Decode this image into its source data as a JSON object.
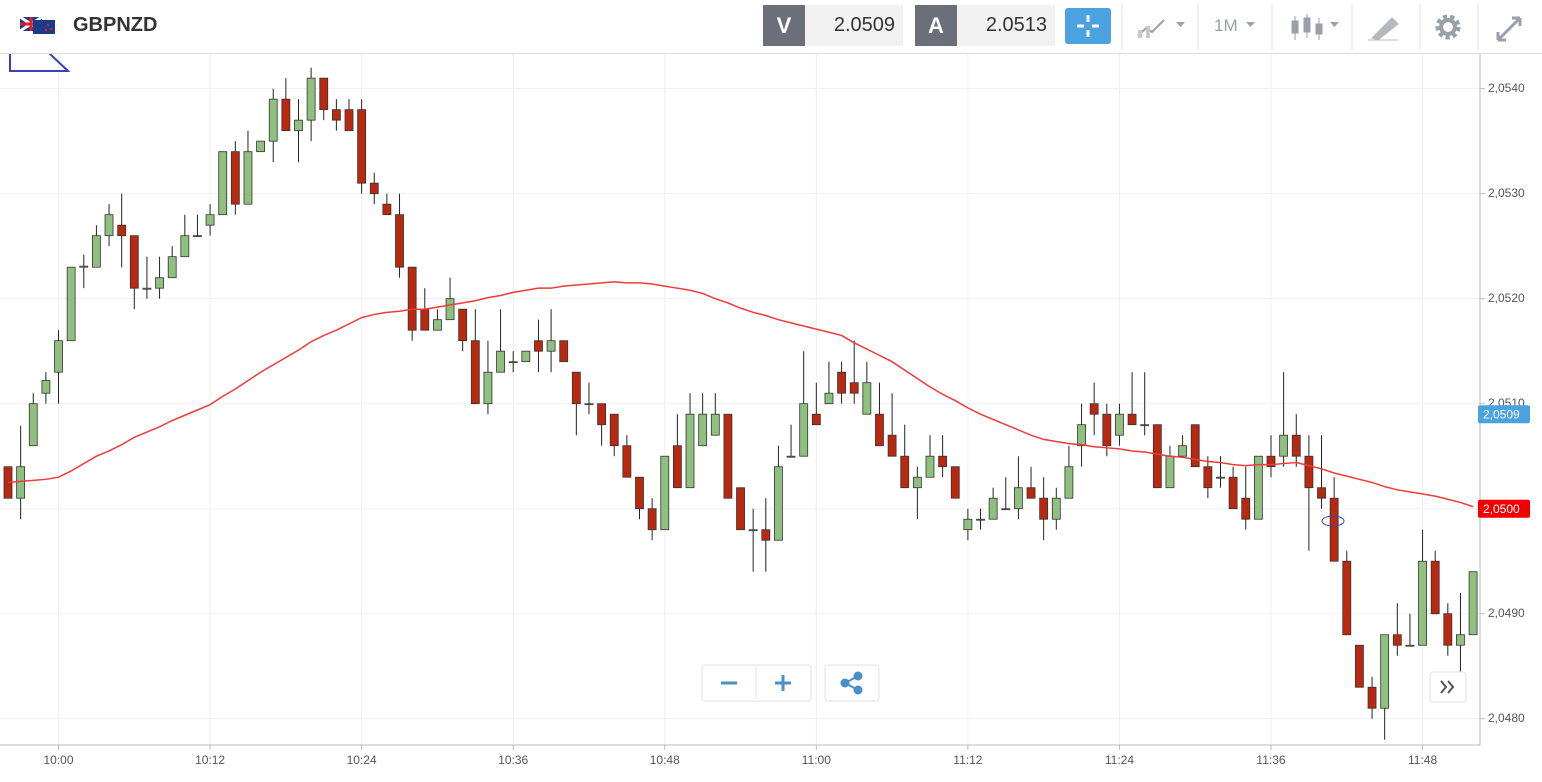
{
  "toolbar": {
    "symbol": "GBPNZD",
    "bid_label": "V",
    "bid": 2.0509,
    "ask_label": "A",
    "ask": 2.0513,
    "timeframe": "1M"
  },
  "chart_data": {
    "type": "candlestick",
    "x": [
      "9:56",
      "9:57",
      "9:58",
      "9:59",
      "10:00",
      "10:01",
      "10:02",
      "10:03",
      "10:04",
      "10:05",
      "10:06",
      "10:07",
      "10:08",
      "10:09",
      "10:10",
      "10:11",
      "10:12",
      "10:13",
      "10:14",
      "10:15",
      "10:16",
      "10:17",
      "10:18",
      "10:19",
      "10:20",
      "10:21",
      "10:22",
      "10:23",
      "10:24",
      "10:25",
      "10:26",
      "10:27",
      "10:28",
      "10:29",
      "10:30",
      "10:31",
      "10:32",
      "10:33",
      "10:34",
      "10:35",
      "10:36",
      "10:37",
      "10:38",
      "10:39",
      "10:40",
      "10:41",
      "10:42",
      "10:43",
      "10:44",
      "10:45",
      "10:46",
      "10:47",
      "10:48",
      "10:49",
      "10:50",
      "10:51",
      "10:52",
      "10:53",
      "10:54",
      "10:55",
      "10:56",
      "10:57",
      "10:58",
      "10:59",
      "11:00",
      "11:01",
      "11:02",
      "11:03",
      "11:04",
      "11:05",
      "11:06",
      "11:07",
      "11:08",
      "11:09",
      "11:10",
      "11:11",
      "11:12",
      "11:13",
      "11:14",
      "11:15",
      "11:16",
      "11:17",
      "11:18",
      "11:19",
      "11:20",
      "11:21",
      "11:22",
      "11:23",
      "11:24",
      "11:25",
      "11:26",
      "11:27",
      "11:28",
      "11:29",
      "11:30",
      "11:31",
      "11:32",
      "11:33",
      "11:34",
      "11:35",
      "11:36",
      "11:37",
      "11:38",
      "11:39",
      "11:40",
      "11:41",
      "11:42",
      "11:43",
      "11:44",
      "11:45",
      "11:46",
      "11:47",
      "11:48",
      "11:49",
      "11:50",
      "11:51",
      "11:52"
    ],
    "open": [
      2.0504,
      2.0501,
      2.0506,
      2.0511,
      2.0513,
      2.0516,
      2.0523,
      2.0523,
      2.0526,
      2.0527,
      2.0526,
      2.05209,
      2.0521,
      2.0522,
      2.0524,
      2.0526,
      2.0527,
      2.0528,
      2.0534,
      2.0529,
      2.0534,
      2.0535,
      2.0539,
      2.0536,
      2.0537,
      2.0541,
      2.0538,
      2.0538,
      2.0538,
      2.0531,
      2.0529,
      2.0528,
      2.0523,
      2.0519,
      2.0517,
      2.0518,
      2.0519,
      2.0516,
      2.051,
      2.0513,
      2.0514,
      2.0514,
      2.0516,
      2.0515,
      2.0516,
      2.0513,
      2.051,
      2.051,
      2.0509,
      2.0506,
      2.0503,
      2.05,
      2.0498,
      2.0506,
      2.0502,
      2.0506,
      2.0507,
      2.0509,
      2.0502,
      2.0498,
      2.0498,
      2.0497,
      2.0505,
      2.0505,
      2.0509,
      2.051,
      2.0513,
      2.0512,
      2.0509,
      2.0509,
      2.0507,
      2.0505,
      2.0502,
      2.0503,
      2.0505,
      2.0504,
      2.0498,
      2.0499,
      2.0499,
      2.05,
      2.05,
      2.0502,
      2.0501,
      2.0499,
      2.0501,
      2.0506,
      2.051,
      2.0509,
      2.0507,
      2.0509,
      2.0508,
      2.0508,
      2.0502,
      2.0505,
      2.0508,
      2.0504,
      2.0503,
      2.0503,
      2.0501,
      2.0499,
      2.0505,
      2.0505,
      2.0507,
      2.0505,
      2.0502,
      2.0501,
      2.0495,
      2.0487,
      2.0483,
      2.0481,
      2.0488,
      2.0487,
      2.0487,
      2.0495,
      2.049,
      2.0487,
      2.0488
    ],
    "high": [
      2.0504,
      2.05079,
      2.0511,
      2.0513,
      2.0517,
      2.0523,
      2.05242,
      2.0527,
      2.0529,
      2.053,
      2.0526,
      2.0524,
      2.0524,
      2.0525,
      2.0528,
      2.0528,
      2.0529,
      2.0534,
      2.0535,
      2.0536,
      2.0535,
      2.054,
      2.0541,
      2.0539,
      2.0542,
      2.0541,
      2.0539,
      2.0539,
      2.0539,
      2.0532,
      2.053,
      2.053,
      2.0523,
      2.0521,
      2.0519,
      2.0522,
      2.0519,
      2.0519,
      2.0516,
      2.0519,
      2.0515,
      2.0515,
      2.0518,
      2.0519,
      2.0516,
      2.0513,
      2.0512,
      2.051,
      2.0509,
      2.0507,
      2.0503,
      2.0501,
      2.0505,
      2.0509,
      2.0511,
      2.0511,
      2.0511,
      2.0509,
      2.0502,
      2.05,
      2.0501,
      2.0506,
      2.0508,
      2.0515,
      2.0512,
      2.0514,
      2.0514,
      2.0516,
      2.0514,
      2.0512,
      2.0511,
      2.0508,
      2.0504,
      2.0507,
      2.0507,
      2.0504,
      2.05,
      2.05,
      2.0502,
      2.0503,
      2.0505,
      2.0504,
      2.0503,
      2.0502,
      2.0506,
      2.051,
      2.0512,
      2.051,
      2.051,
      2.0513,
      2.0513,
      2.0508,
      2.0506,
      2.0507,
      2.0508,
      2.0505,
      2.0505,
      2.0504,
      2.0504,
      2.0505,
      2.0507,
      2.0513,
      2.0509,
      2.0507,
      2.0507,
      2.0503,
      2.0496,
      2.0487,
      2.0484,
      2.0488,
      2.0491,
      2.049,
      2.0498,
      2.0496,
      2.0491,
      2.0492,
      2.0494
    ],
    "low": [
      2.0501,
      2.0499,
      2.0506,
      2.051,
      2.051,
      2.0516,
      2.0521,
      2.0523,
      2.0525,
      2.0523,
      2.0519,
      2.052,
      2.052,
      2.0522,
      2.0524,
      2.0526,
      2.0526,
      2.0528,
      2.0528,
      2.0529,
      2.0534,
      2.0533,
      2.0536,
      2.0533,
      2.0535,
      2.0537,
      2.0536,
      2.0536,
      2.053,
      2.0529,
      2.0528,
      2.0522,
      2.0516,
      2.0517,
      2.0517,
      2.0518,
      2.0515,
      2.051,
      2.0509,
      2.0513,
      2.0513,
      2.0514,
      2.0513,
      2.0513,
      2.0514,
      2.0507,
      2.0509,
      2.0506,
      2.0505,
      2.0503,
      2.0499,
      2.0497,
      2.0498,
      2.0502,
      2.0502,
      2.0506,
      2.0507,
      2.0501,
      2.0498,
      2.0494,
      2.0494,
      2.0497,
      2.0505,
      2.0505,
      2.0508,
      2.051,
      2.051,
      2.051,
      2.0509,
      2.0506,
      2.0505,
      2.0502,
      2.0499,
      2.0503,
      2.0503,
      2.0501,
      2.0497,
      2.0498,
      2.0499,
      2.05,
      2.0499,
      2.0501,
      2.0497,
      2.0498,
      2.0501,
      2.0504,
      2.0507,
      2.0505,
      2.0506,
      2.0508,
      2.0507,
      2.0502,
      2.0502,
      2.0505,
      2.0504,
      2.0501,
      2.0502,
      2.05,
      2.0498,
      2.0499,
      2.0503,
      2.0504,
      2.0504,
      2.0496,
      2.05,
      2.0495,
      2.0488,
      2.0483,
      2.048,
      2.0478,
      2.0486,
      2.0487,
      2.0487,
      2.049,
      2.0486,
      2.04845,
      2.0488
    ],
    "close": [
      2.0501,
      2.0504,
      2.051,
      2.05122,
      2.0516,
      2.0523,
      2.05231,
      2.0526,
      2.0528,
      2.0526,
      2.0521,
      2.0521,
      2.0522,
      2.0524,
      2.0526,
      2.0526,
      2.0528,
      2.0534,
      2.0529,
      2.0534,
      2.0535,
      2.0539,
      2.0536,
      2.0537,
      2.0541,
      2.0538,
      2.0537,
      2.0536,
      2.0531,
      2.053,
      2.0528,
      2.0523,
      2.0517,
      2.0517,
      2.0518,
      2.052,
      2.0516,
      2.051,
      2.0513,
      2.0515,
      2.0514,
      2.0515,
      2.0515,
      2.0516,
      2.0514,
      2.051,
      2.051,
      2.0508,
      2.0506,
      2.0503,
      2.05,
      2.0498,
      2.0505,
      2.0502,
      2.0509,
      2.0509,
      2.0509,
      2.0501,
      2.0498,
      2.0498,
      2.0497,
      2.0504,
      2.0505,
      2.051,
      2.0508,
      2.0511,
      2.0511,
      2.0511,
      2.0512,
      2.0506,
      2.0505,
      2.0502,
      2.0503,
      2.0505,
      2.0504,
      2.0501,
      2.0499,
      2.0499,
      2.0501,
      2.05,
      2.0502,
      2.0501,
      2.0499,
      2.0501,
      2.0504,
      2.0508,
      2.0509,
      2.0506,
      2.0509,
      2.0508,
      2.0508,
      2.0502,
      2.0505,
      2.0506,
      2.0504,
      2.0502,
      2.0503,
      2.05,
      2.0499,
      2.0505,
      2.0504,
      2.0507,
      2.0505,
      2.0502,
      2.0501,
      2.0495,
      2.0488,
      2.0483,
      2.0481,
      2.0488,
      2.0487,
      2.0487,
      2.0495,
      2.049,
      2.0487,
      2.0488,
      2.0494
    ],
    "up_color": "#8fc07f",
    "down_color": "#b8290f",
    "ma": {
      "color": "#f03a3a",
      "values": [
        2.05025,
        2.05026,
        2.05027,
        2.05028,
        2.0503,
        2.05036,
        2.05043,
        2.0505,
        2.05055,
        2.05061,
        2.05068,
        2.05073,
        2.05078,
        2.05084,
        2.05089,
        2.05094,
        2.05099,
        2.05107,
        2.05114,
        2.05122,
        2.0513,
        2.05137,
        2.05144,
        2.05151,
        2.05159,
        2.05165,
        2.0517,
        2.05176,
        2.05182,
        2.05185,
        2.05187,
        2.05188,
        2.0519,
        2.0519,
        2.05192,
        2.05194,
        2.05196,
        2.05198,
        2.05201,
        2.05203,
        2.05206,
        2.05208,
        2.0521,
        2.0521,
        2.05212,
        2.05213,
        2.05214,
        2.05215,
        2.05216,
        2.05215,
        2.05215,
        2.05214,
        2.05212,
        2.0521,
        2.05208,
        2.05205,
        2.052,
        2.05196,
        2.05191,
        2.05187,
        2.05184,
        2.0518,
        2.05177,
        2.05174,
        2.05171,
        2.05168,
        2.05165,
        2.05158,
        2.05152,
        2.05146,
        2.0514,
        2.05132,
        2.05124,
        2.05116,
        2.05109,
        2.05103,
        2.05096,
        2.0509,
        2.05085,
        2.0508,
        2.05075,
        2.0507,
        2.05066,
        2.05064,
        2.05062,
        2.05061,
        2.05059,
        2.05058,
        2.05057,
        2.05055,
        2.05054,
        2.05052,
        2.0505,
        2.05049,
        2.05047,
        2.05045,
        2.05044,
        2.05042,
        2.05041,
        2.05042,
        2.05042,
        2.05043,
        2.05044,
        2.05041,
        2.05038,
        2.05034,
        2.05031,
        2.05028,
        2.05025,
        2.05021,
        2.05018,
        2.05016,
        2.05014,
        2.05012,
        2.05009,
        2.05006,
        2.05002
      ]
    },
    "price_tags": [
      {
        "value": 2.0509,
        "label": "2,0509",
        "color": "#4aa3df"
      },
      {
        "value": 2.05,
        "label": "2,0500",
        "color": "#f00000"
      }
    ],
    "ylim": [
      2.04775,
      2.05433
    ],
    "yticks": [
      {
        "value": 2.048,
        "label": "2,0480"
      },
      {
        "value": 2.049,
        "label": "2,0490"
      },
      {
        "value": 2.05,
        "label": "2,0500"
      },
      {
        "value": 2.051,
        "label": "2,0510"
      },
      {
        "value": 2.052,
        "label": "2,0520"
      },
      {
        "value": 2.053,
        "label": "2,0530"
      },
      {
        "value": 2.054,
        "label": "2,0540"
      }
    ],
    "xticks": [
      "10:00",
      "10:12",
      "10:24",
      "10:36",
      "10:48",
      "11:00",
      "11:12",
      "11:24",
      "11:36",
      "11:48"
    ],
    "grid": true
  }
}
